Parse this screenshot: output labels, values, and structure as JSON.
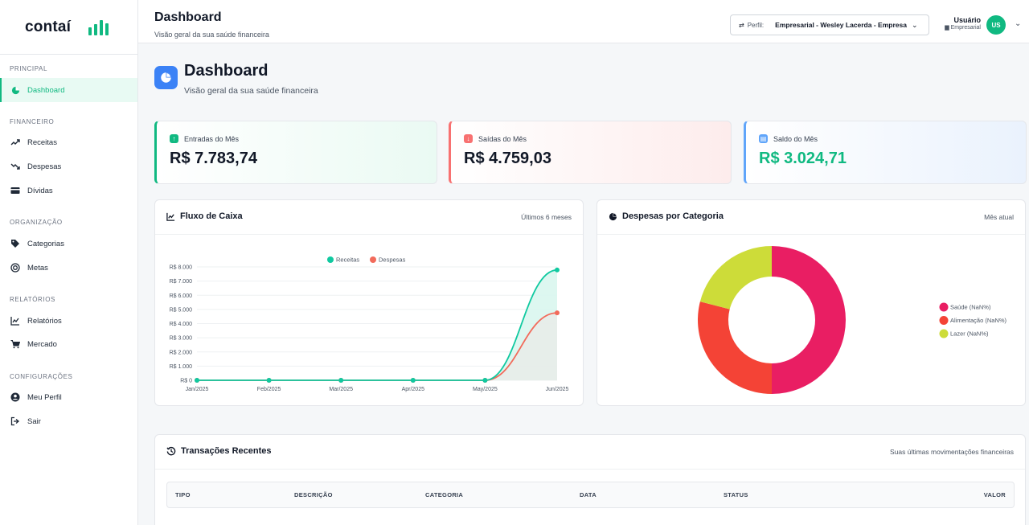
{
  "brand": {
    "name": "contaí",
    "accent": "#10b981"
  },
  "sidebar": {
    "sections": [
      {
        "title": "PRINCIPAL",
        "items": [
          {
            "label": "Dashboard",
            "icon": "pie-chart-icon",
            "active": true
          }
        ]
      },
      {
        "title": "FINANCEIRO",
        "items": [
          {
            "label": "Receitas",
            "icon": "trending-up-icon"
          },
          {
            "label": "Despesas",
            "icon": "trending-down-icon"
          },
          {
            "label": "Dívidas",
            "icon": "credit-card-icon"
          }
        ]
      },
      {
        "title": "ORGANIZAÇÃO",
        "items": [
          {
            "label": "Categorias",
            "icon": "tag-icon"
          },
          {
            "label": "Metas",
            "icon": "target-icon"
          }
        ]
      },
      {
        "title": "RELATÓRIOS",
        "items": [
          {
            "label": "Relatórios",
            "icon": "line-chart-icon"
          },
          {
            "label": "Mercado",
            "icon": "cart-icon"
          }
        ]
      },
      {
        "title": "CONFIGURAÇÕES",
        "items": [
          {
            "label": "Meu Perfil",
            "icon": "user-circle-icon"
          },
          {
            "label": "Sair",
            "icon": "logout-icon"
          }
        ]
      }
    ]
  },
  "header": {
    "title": "Dashboard",
    "subtitle": "Visão geral da sua saúde financeira",
    "profile_label": "Perfil:",
    "profile_value": "Empresarial - Wesley Lacerda - Empresa",
    "user_name": "Usuário",
    "user_role": "Empresarial",
    "avatar_initials": "US"
  },
  "page": {
    "title": "Dashboard",
    "subtitle": "Visão geral da sua saúde financeira"
  },
  "stats": {
    "income": {
      "label": "Entradas do Mês",
      "value": "R$ 7.783,74",
      "color": "#10b981"
    },
    "expense": {
      "label": "Saídas do Mês",
      "value": "R$ 4.759,03",
      "color": "#f87171"
    },
    "balance": {
      "label": "Saldo do Mês",
      "value": "R$ 3.024,71",
      "color": "#10b981"
    }
  },
  "cashflow_card": {
    "title": "Fluxo de Caixa",
    "range": "Últimos 6 meses"
  },
  "category_card": {
    "title": "Despesas por Categoria",
    "range": "Mês atual"
  },
  "transactions_card": {
    "title": "Transações Recentes",
    "subtitle": "Suas últimas movimentações financeiras",
    "columns": [
      "TIPO",
      "DESCRIÇÃO",
      "CATEGORIA",
      "DATA",
      "STATUS",
      "VALOR"
    ]
  },
  "chart_data": [
    {
      "type": "area",
      "ytick_labels": [
        "R$ 0",
        "R$ 1.000",
        "R$ 2.000",
        "R$ 3.000",
        "R$ 4.000",
        "R$ 5.000",
        "R$ 6.000",
        "R$ 7.000",
        "R$ 8.000"
      ],
      "ylim": [
        0,
        8000
      ],
      "categories": [
        "Jan/2025",
        "Feb/2025",
        "Mar/2025",
        "Apr/2025",
        "May/2025",
        "Jun/2025"
      ],
      "series": [
        {
          "name": "Receitas",
          "values": [
            0,
            0,
            0,
            0,
            0,
            7783.74
          ],
          "color": "#10c9a0"
        },
        {
          "name": "Despesas",
          "values": [
            0,
            0,
            0,
            0,
            0,
            4759.03
          ],
          "color": "#f26b5b"
        }
      ],
      "legend": "top",
      "grid": true
    },
    {
      "type": "pie",
      "donut": true,
      "labels": [
        "Saúde (NaN%)",
        "Alimentação (NaN%)",
        "Lazer (NaN%)"
      ],
      "values": [
        50,
        29,
        21
      ],
      "colors": [
        "#e91e63",
        "#f44336",
        "#cddc39"
      ],
      "legend": "right"
    }
  ]
}
